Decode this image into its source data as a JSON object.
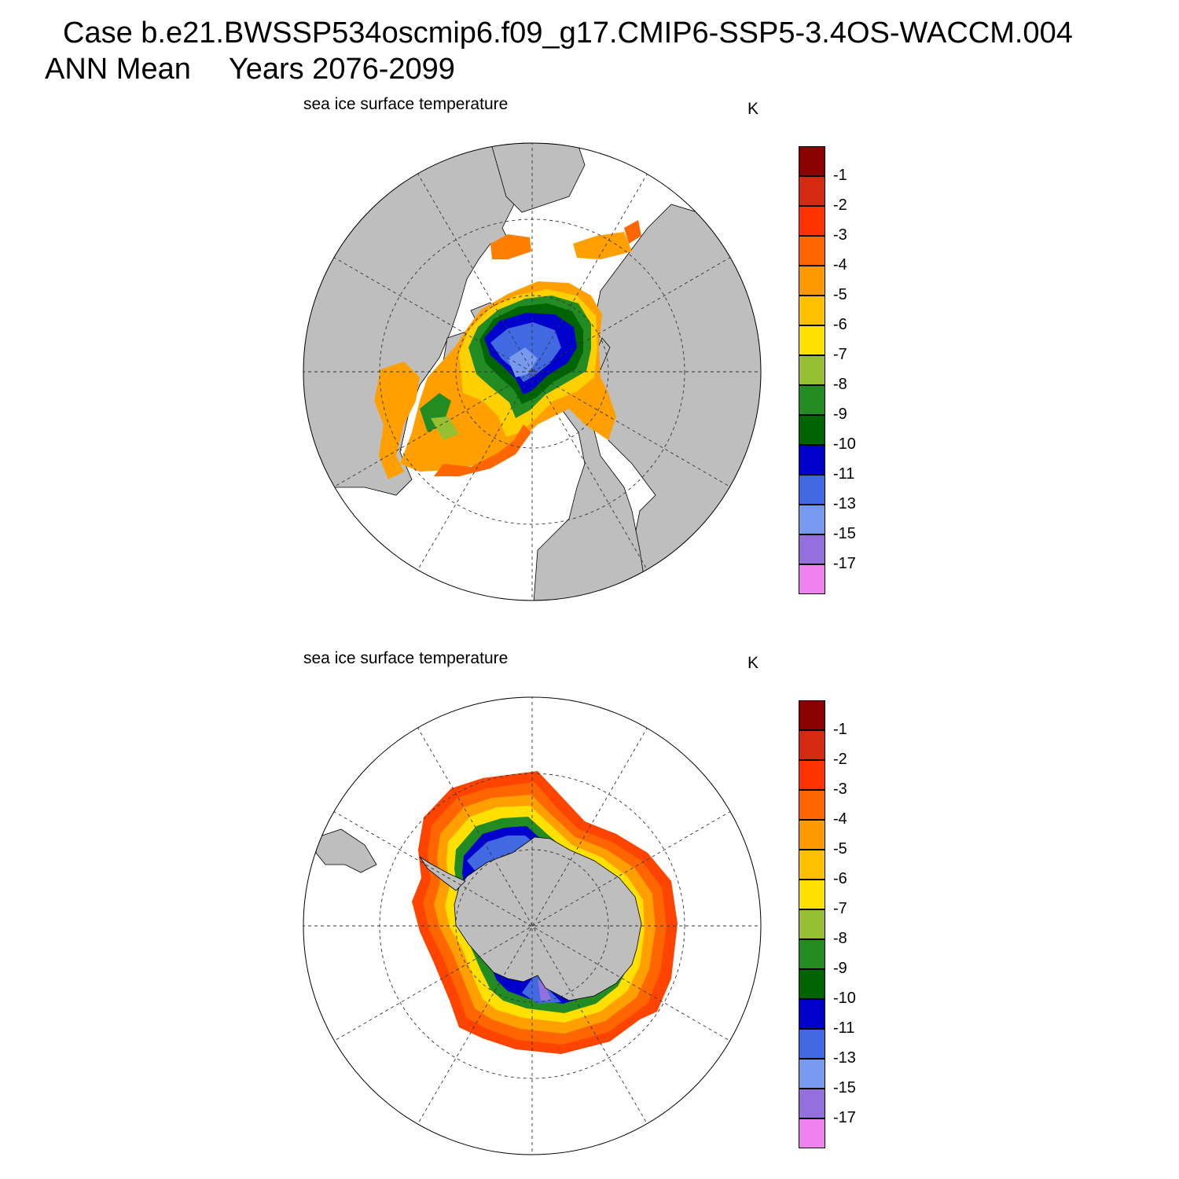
{
  "header": {
    "case": "Case b.e21.BWSSP534oscmip6.f09_g17.CMIP6-SSP5-3.4OS-WACCM.004",
    "season": "ANN Mean",
    "years": "Years 2076-2099"
  },
  "colors": {
    "land": "#bebebe",
    "ocean": "#ffffff",
    "levels": [
      "#8b0000",
      "#d42a12",
      "#ff3300",
      "#ff6600",
      "#ff9900",
      "#ffc000",
      "#ffe000",
      "#96bf33",
      "#228b22",
      "#006400",
      "#0000cd",
      "#4169e1",
      "#7799ee",
      "#9370db",
      "#ee82ee"
    ]
  },
  "colorbar_labels": [
    "-1",
    "-2",
    "-3",
    "-4",
    "-5",
    "-6",
    "-7",
    "-8",
    "-9",
    "-10",
    "-11",
    "-13",
    "-15",
    "-17"
  ],
  "panels": [
    {
      "id": "north",
      "title": "sea ice surface temperature",
      "units": "K",
      "hemisphere": "Northern"
    },
    {
      "id": "south",
      "title": "sea ice surface temperature",
      "units": "K",
      "hemisphere": "Southern"
    }
  ]
}
